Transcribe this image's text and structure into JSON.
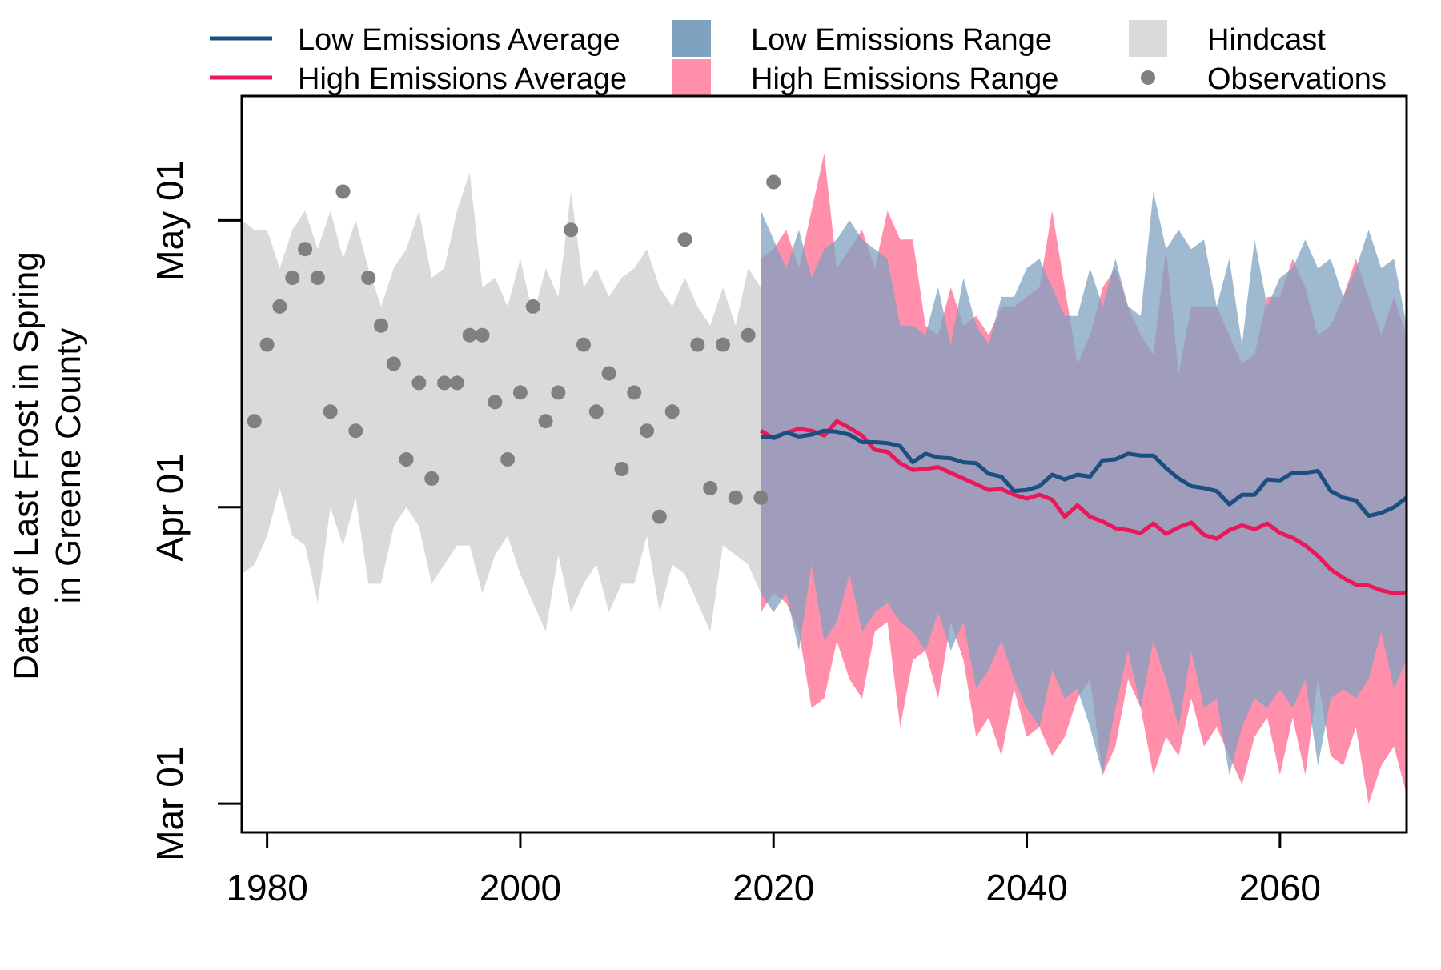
{
  "chart_data": {
    "type": "area",
    "ylabel_lines": [
      "Date of Last Frost in Spring",
      "in Greene County"
    ],
    "xlabel": "",
    "xlim": [
      1978,
      2070
    ],
    "x_ticks": [
      1980,
      2000,
      2020,
      2040,
      2060
    ],
    "x_tick_labels": [
      "1980",
      "2000",
      "2020",
      "2040",
      "2060"
    ],
    "ylim_day_of_year": [
      57,
      134
    ],
    "y_ticks_day_of_year": [
      60,
      91,
      121
    ],
    "y_tick_labels": [
      "Mar 01",
      "Apr 01",
      "May 01"
    ],
    "legend": {
      "placement": "top",
      "low_avg": "Low Emissions Average",
      "high_avg": "High Emissions Average",
      "low_range": "Low Emissions Range",
      "high_range": "High Emissions Range",
      "hindcast": "Hindcast",
      "observations": "Observations"
    },
    "colors": {
      "low": "#1b4f80",
      "high": "#e8185a",
      "low_range": "#7fa2c0",
      "high_range": "#ff8fab",
      "hindcast": "#dadada",
      "observations": "#808080"
    },
    "hindcast": {
      "x": [
        1978,
        1979,
        1980,
        1981,
        1982,
        1983,
        1984,
        1985,
        1986,
        1987,
        1988,
        1989,
        1990,
        1991,
        1992,
        1993,
        1994,
        1995,
        1996,
        1997,
        1998,
        1999,
        2000,
        2001,
        2002,
        2003,
        2004,
        2005,
        2006,
        2007,
        2008,
        2009,
        2010,
        2011,
        2012,
        2013,
        2014,
        2015,
        2016,
        2017,
        2018,
        2019
      ],
      "upper": [
        121,
        120,
        120,
        116,
        120,
        122,
        118,
        122,
        117,
        121,
        116,
        112,
        116,
        118,
        122,
        115,
        116,
        122,
        126,
        114,
        115,
        112,
        117,
        111,
        116,
        113,
        124,
        114,
        116,
        113,
        115,
        116,
        118,
        114,
        112,
        115,
        112,
        110,
        114,
        110,
        116,
        114
      ],
      "lower": [
        84,
        85,
        88,
        93,
        88,
        87,
        81,
        91,
        87,
        92,
        83,
        83,
        89,
        91,
        89,
        83,
        85,
        87,
        87,
        82,
        86,
        88,
        84,
        81,
        78,
        86,
        80,
        83,
        85,
        80,
        83,
        83,
        88,
        80,
        85,
        84,
        81,
        78,
        87,
        86,
        85,
        82
      ]
    },
    "observations": {
      "x": [
        1979,
        1980,
        1981,
        1982,
        1983,
        1984,
        1985,
        1986,
        1987,
        1988,
        1989,
        1990,
        1991,
        1992,
        1993,
        1994,
        1995,
        1996,
        1997,
        1998,
        1999,
        2000,
        2001,
        2002,
        2003,
        2004,
        2005,
        2006,
        2007,
        2008,
        2009,
        2010,
        2011,
        2012,
        2013,
        2014,
        2015,
        2016,
        2017,
        2018,
        2019,
        2020
      ],
      "y": [
        100,
        108,
        112,
        115,
        118,
        115,
        101,
        124,
        99,
        115,
        110,
        106,
        96,
        104,
        94,
        104,
        104,
        109,
        109,
        102,
        96,
        103,
        112,
        100,
        103,
        120,
        108,
        101,
        105,
        95,
        103,
        99,
        90,
        101,
        119,
        108,
        93,
        108,
        92,
        109,
        92,
        125
      ]
    },
    "future_x": [
      2019,
      2020,
      2021,
      2022,
      2023,
      2024,
      2025,
      2026,
      2027,
      2028,
      2029,
      2030,
      2031,
      2032,
      2033,
      2034,
      2035,
      2036,
      2037,
      2038,
      2039,
      2040,
      2041,
      2042,
      2043,
      2044,
      2045,
      2046,
      2047,
      2048,
      2049,
      2050,
      2051,
      2052,
      2053,
      2054,
      2055,
      2056,
      2057,
      2058,
      2059,
      2060,
      2061,
      2062,
      2063,
      2064,
      2065,
      2066,
      2067,
      2068,
      2069,
      2070
    ],
    "series": [
      {
        "name": "Low Emissions Average",
        "values": [
          98.3,
          98.3,
          98.8,
          98.4,
          98.6,
          99.0,
          98.9,
          98.6,
          97.8,
          97.8,
          97.7,
          97.4,
          95.7,
          96.6,
          96.2,
          96.1,
          95.7,
          95.6,
          94.5,
          94.2,
          92.7,
          92.8,
          93.2,
          94.4,
          93.9,
          94.4,
          94.2,
          95.9,
          96.0,
          96.6,
          96.4,
          96.4,
          95.1,
          94.0,
          93.2,
          93.0,
          92.7,
          91.3,
          92.3,
          92.3,
          93.9,
          93.8,
          94.6,
          94.6,
          94.8,
          92.7,
          92.0,
          91.7,
          90.1,
          90.4,
          91.0,
          92.0
        ]
      },
      {
        "name": "High Emissions Average",
        "values": [
          99.0,
          98.2,
          98.8,
          99.2,
          99.0,
          98.5,
          100.0,
          99.3,
          98.5,
          97.0,
          96.8,
          95.6,
          94.9,
          95.0,
          95.2,
          94.6,
          94.0,
          93.4,
          92.8,
          92.9,
          92.3,
          91.9,
          92.3,
          91.8,
          90.0,
          91.2,
          90.0,
          89.5,
          88.8,
          88.6,
          88.3,
          89.3,
          88.2,
          88.9,
          89.4,
          88.1,
          87.7,
          88.6,
          89.1,
          88.7,
          89.3,
          88.3,
          87.8,
          87.0,
          85.9,
          84.5,
          83.6,
          82.9,
          82.8,
          82.3,
          82.0,
          82.0
        ]
      }
    ],
    "low_range": {
      "upper": [
        122,
        119,
        116,
        120,
        115,
        118,
        119,
        121,
        119,
        118,
        117,
        110,
        110,
        109,
        114,
        108,
        115,
        110,
        108,
        113,
        113,
        116,
        117,
        114,
        111,
        111,
        116,
        112,
        117,
        112,
        111,
        124,
        118,
        120,
        118,
        119,
        112,
        117,
        108,
        119,
        112,
        115,
        116,
        119,
        116,
        117,
        113,
        116,
        120,
        116,
        117,
        110
      ],
      "lower": [
        82,
        80,
        82,
        76,
        85,
        77,
        79,
        84,
        78,
        80,
        81,
        79,
        78,
        76,
        80,
        76,
        79,
        72,
        74,
        77,
        73,
        70,
        68,
        74,
        71,
        72,
        68,
        63,
        70,
        76,
        70,
        77,
        73,
        68,
        76,
        70,
        71,
        63,
        68,
        71,
        70,
        72,
        70,
        73,
        64,
        71,
        72,
        71,
        73,
        78,
        72,
        75
      ]
    },
    "high_range": {
      "upper": [
        117,
        118,
        120,
        116,
        122,
        128,
        116,
        118,
        120,
        116,
        122,
        119,
        119,
        110,
        109,
        114,
        110,
        111,
        109,
        112,
        112,
        113,
        114,
        122,
        114,
        106,
        109,
        114,
        116,
        112,
        109,
        107,
        118,
        105,
        112,
        112,
        112,
        109,
        106,
        107,
        113,
        113,
        117,
        114,
        109,
        110,
        113,
        117,
        113,
        109,
        113,
        109
      ]
    },
    "high_range_lower": [
      80,
      82,
      81,
      78,
      70,
      71,
      77,
      73,
      71,
      78,
      79,
      68,
      75,
      76,
      71,
      79,
      75,
      67,
      69,
      65,
      72,
      67,
      68,
      65,
      67,
      71,
      73,
      63,
      66,
      73,
      70,
      63,
      67,
      65,
      71,
      66,
      68,
      65,
      62,
      67,
      69,
      63,
      69,
      63,
      73,
      65,
      64,
      68,
      60,
      64,
      66,
      61
    ]
  }
}
